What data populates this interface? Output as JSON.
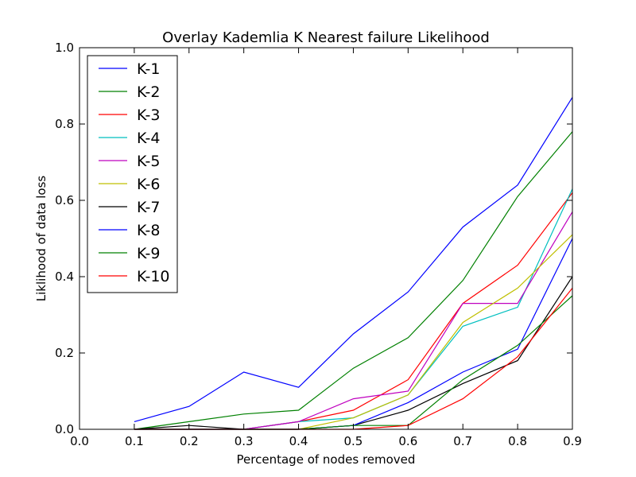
{
  "chart_data": {
    "type": "line",
    "title": "Overlay Kademlia K Nearest failure Likelihood",
    "xlabel": "Percentage of nodes removed",
    "ylabel": "Liklihood of data loss",
    "xlim": [
      0.0,
      0.9
    ],
    "ylim": [
      0.0,
      1.0
    ],
    "xticks": [
      "0.0",
      "0.1",
      "0.2",
      "0.3",
      "0.4",
      "0.5",
      "0.6",
      "0.7",
      "0.8",
      "0.9"
    ],
    "yticks": [
      "0.0",
      "0.2",
      "0.4",
      "0.6",
      "0.8",
      "1.0"
    ],
    "x": [
      0.1,
      0.2,
      0.3,
      0.4,
      0.5,
      0.6,
      0.7,
      0.8,
      0.9
    ],
    "legend_position": "top-left",
    "grid": false,
    "series": [
      {
        "name": "K-1",
        "color": "#0000ff",
        "values": [
          0.02,
          0.06,
          0.15,
          0.11,
          0.25,
          0.36,
          0.53,
          0.64,
          0.87
        ]
      },
      {
        "name": "K-2",
        "color": "#008000",
        "values": [
          0.0,
          0.02,
          0.04,
          0.05,
          0.16,
          0.24,
          0.39,
          0.61,
          0.78
        ]
      },
      {
        "name": "K-3",
        "color": "#ff0000",
        "values": [
          0.0,
          0.0,
          0.0,
          0.02,
          0.05,
          0.13,
          0.33,
          0.43,
          0.62
        ]
      },
      {
        "name": "K-4",
        "color": "#00bfbf",
        "values": [
          0.0,
          0.0,
          0.0,
          0.02,
          0.03,
          0.09,
          0.27,
          0.32,
          0.63
        ]
      },
      {
        "name": "K-5",
        "color": "#bf00bf",
        "values": [
          0.0,
          0.0,
          0.0,
          0.02,
          0.08,
          0.1,
          0.33,
          0.33,
          0.57
        ]
      },
      {
        "name": "K-6",
        "color": "#bfbf00",
        "values": [
          0.0,
          0.0,
          0.0,
          0.0,
          0.03,
          0.09,
          0.28,
          0.37,
          0.51
        ]
      },
      {
        "name": "K-7",
        "color": "#000000",
        "values": [
          0.0,
          0.01,
          0.0,
          0.0,
          0.01,
          0.05,
          0.12,
          0.18,
          0.4
        ]
      },
      {
        "name": "K-8",
        "color": "#0000ff",
        "values": [
          0.0,
          0.0,
          0.0,
          0.0,
          0.01,
          0.07,
          0.15,
          0.21,
          0.5
        ]
      },
      {
        "name": "K-9",
        "color": "#008000",
        "values": [
          0.0,
          0.0,
          0.0,
          0.0,
          0.01,
          0.01,
          0.13,
          0.22,
          0.35
        ]
      },
      {
        "name": "K-10",
        "color": "#ff0000",
        "values": [
          0.0,
          0.0,
          0.0,
          0.0,
          0.0,
          0.01,
          0.08,
          0.19,
          0.37
        ]
      }
    ]
  }
}
